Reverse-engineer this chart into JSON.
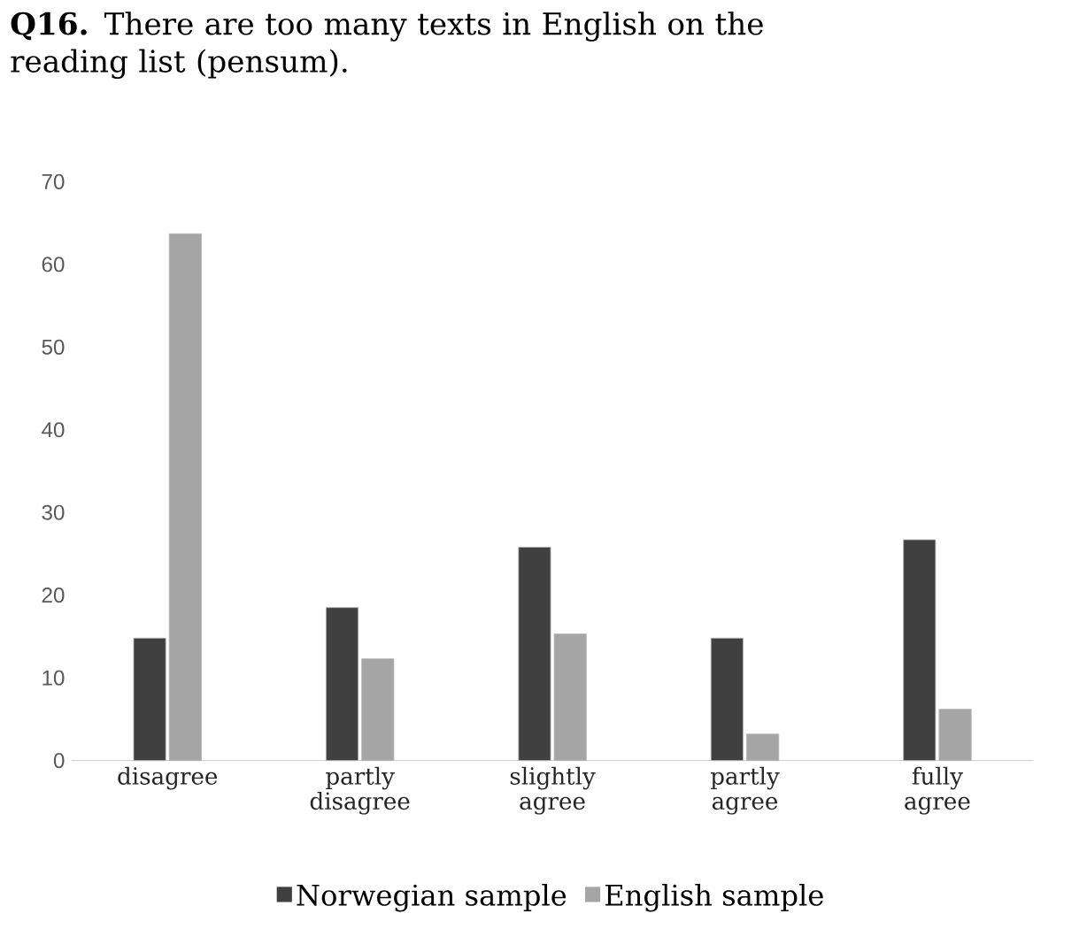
{
  "chart_data": {
    "type": "bar",
    "title": "**Q16.** There are too many texts in English on the reading list (pensum).",
    "categories": [
      "disagree",
      "partly disagree",
      "slightly agree",
      "partly agree",
      "fully agree"
    ],
    "series": [
      {
        "name": "Norwegian sample",
        "color": "#404040",
        "values": [
          14.8,
          18.5,
          25.8,
          14.8,
          26.7
        ]
      },
      {
        "name": "English sample",
        "color": "#a5a5a5",
        "values": [
          63.7,
          12.3,
          15.3,
          3.2,
          6.2
        ]
      }
    ],
    "ylim": [
      0,
      70
    ],
    "yticks": [
      0,
      10,
      20,
      30,
      40,
      50,
      60,
      70
    ],
    "grid": false,
    "legend": "bottom"
  }
}
